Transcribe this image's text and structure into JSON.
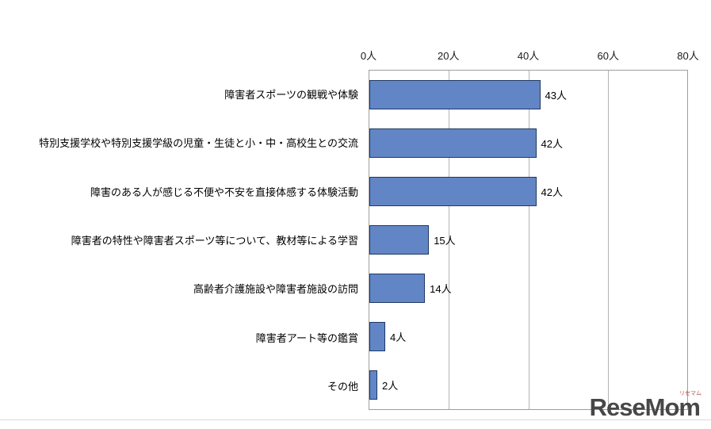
{
  "chart_data": {
    "type": "bar",
    "orientation": "horizontal",
    "title": "",
    "xlabel": "",
    "ylabel": "",
    "unit": "人",
    "categories": [
      "障害者スポーツの観戦や体験",
      "特別支援学校や特別支援学級の児童・生徒と小・中・高校生との交流",
      "障害のある人が感じる不便や不安を直接体感する体験活動",
      "障害者の特性や障害者スポーツ等について、教材等による学習",
      "高齢者介護施設や障害者施設の訪問",
      "障害者アート等の鑑賞",
      "その他"
    ],
    "values": [
      43,
      42,
      42,
      15,
      14,
      4,
      2
    ],
    "value_labels": [
      "43人",
      "42人",
      "42人",
      "15人",
      "14人",
      "4人",
      "2人"
    ],
    "x_ticks": [
      "0人",
      "20人",
      "40人",
      "60人",
      "80人"
    ],
    "xlim": [
      0,
      80
    ],
    "grid": "vertical-gridlines-on",
    "legend_position": "none",
    "bar_color": "#6286C5",
    "bar_border_color": "#1F3864"
  },
  "watermark": {
    "text": "ReseMom",
    "subtext": "リセマム"
  }
}
